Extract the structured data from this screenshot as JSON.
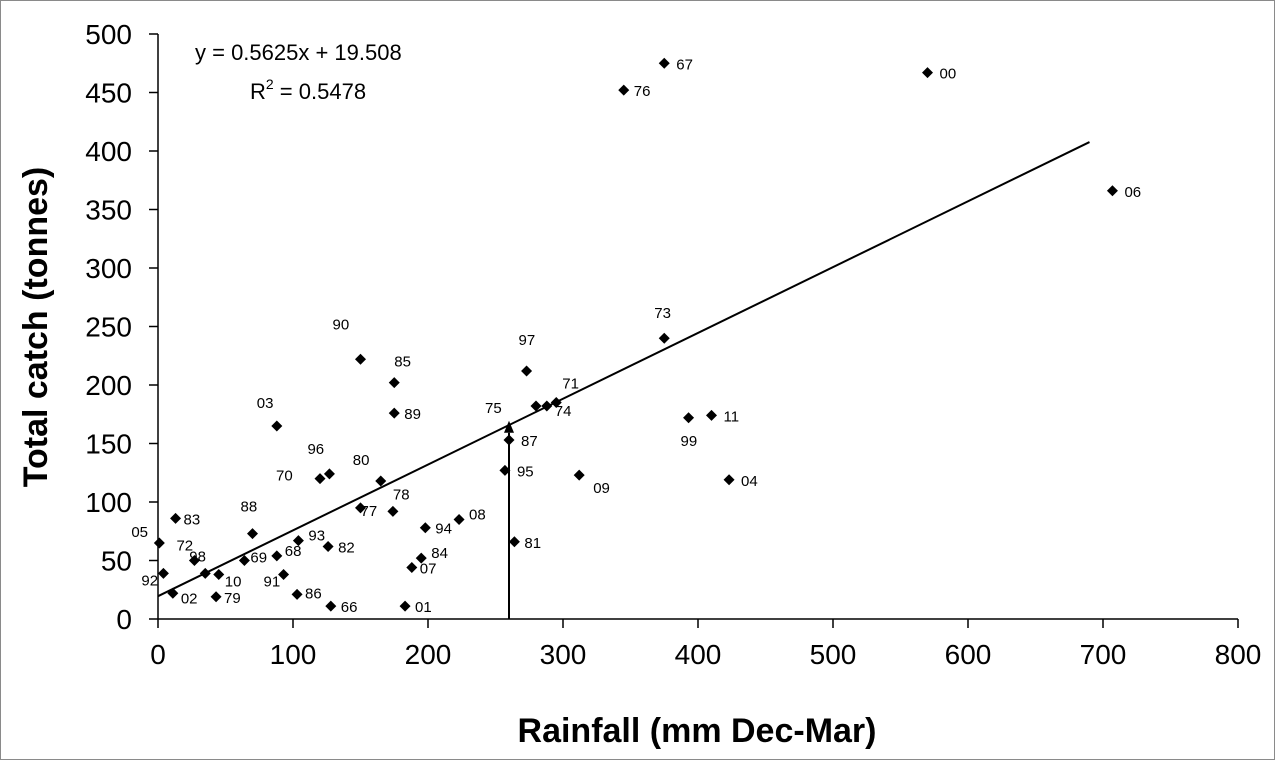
{
  "chart_data": {
    "type": "scatter",
    "xlabel": "Rainfall (mm Dec-Mar)",
    "ylabel": "Total catch (tonnes)",
    "xlim": [
      0,
      800
    ],
    "ylim": [
      0,
      500
    ],
    "xticks": [
      0,
      100,
      200,
      300,
      400,
      500,
      600,
      700,
      800
    ],
    "yticks": [
      0,
      50,
      100,
      150,
      200,
      250,
      300,
      350,
      400,
      450,
      500
    ],
    "grid": false,
    "annotations": {
      "equation": "y = 0.5625x + 19.508",
      "r2_prefix": "R",
      "r2_sup": "2",
      "r2_value": " = 0.5478"
    },
    "trendline": {
      "slope": 0.5625,
      "intercept": 19.508,
      "x_range": [
        0,
        690
      ]
    },
    "marker_line": {
      "x": 260,
      "y_from": 0,
      "y_to": 166,
      "label": "75"
    },
    "points": [
      {
        "label": "67",
        "x": 375,
        "y": 475
      },
      {
        "label": "00",
        "x": 570,
        "y": 467
      },
      {
        "label": "76",
        "x": 345,
        "y": 452
      },
      {
        "label": "06",
        "x": 707,
        "y": 366
      },
      {
        "label": "73",
        "x": 375,
        "y": 240
      },
      {
        "label": "90",
        "x": 150,
        "y": 222
      },
      {
        "label": "97",
        "x": 273,
        "y": 212
      },
      {
        "label": "85",
        "x": 175,
        "y": 202
      },
      {
        "label": "71",
        "x": 295,
        "y": 185
      },
      {
        "label": "74",
        "x": 288,
        "y": 182
      },
      {
        "label": "",
        "x": 280,
        "y": 182
      },
      {
        "label": "89",
        "x": 175,
        "y": 176
      },
      {
        "label": "11",
        "x": 410,
        "y": 174
      },
      {
        "label": "99",
        "x": 393,
        "y": 172
      },
      {
        "label": "03",
        "x": 88,
        "y": 165
      },
      {
        "label": "87",
        "x": 260,
        "y": 153
      },
      {
        "label": "95",
        "x": 257,
        "y": 127
      },
      {
        "label": "96",
        "x": 127,
        "y": 124
      },
      {
        "label": "09",
        "x": 312,
        "y": 123
      },
      {
        "label": "70",
        "x": 120,
        "y": 120
      },
      {
        "label": "04",
        "x": 423,
        "y": 119
      },
      {
        "label": "80",
        "x": 165,
        "y": 118
      },
      {
        "label": "77",
        "x": 150,
        "y": 95
      },
      {
        "label": "78",
        "x": 174,
        "y": 92
      },
      {
        "label": "83",
        "x": 13,
        "y": 86
      },
      {
        "label": "08",
        "x": 223,
        "y": 85
      },
      {
        "label": "94",
        "x": 198,
        "y": 78
      },
      {
        "label": "88",
        "x": 70,
        "y": 73
      },
      {
        "label": "93",
        "x": 104,
        "y": 67
      },
      {
        "label": "81",
        "x": 264,
        "y": 66
      },
      {
        "label": "05",
        "x": 1,
        "y": 65
      },
      {
        "label": "82",
        "x": 126,
        "y": 62
      },
      {
        "label": "68",
        "x": 88,
        "y": 54
      },
      {
        "label": "84",
        "x": 195,
        "y": 52
      },
      {
        "label": "72",
        "x": 27,
        "y": 50
      },
      {
        "label": "69",
        "x": 64,
        "y": 50
      },
      {
        "label": "07",
        "x": 188,
        "y": 44
      },
      {
        "label": "92",
        "x": 4,
        "y": 39
      },
      {
        "label": "98",
        "x": 35,
        "y": 39
      },
      {
        "label": "10",
        "x": 45,
        "y": 38
      },
      {
        "label": "91",
        "x": 93,
        "y": 38
      },
      {
        "label": "02",
        "x": 11,
        "y": 22
      },
      {
        "label": "86",
        "x": 103,
        "y": 21
      },
      {
        "label": "79",
        "x": 43,
        "y": 19
      },
      {
        "label": "66",
        "x": 128,
        "y": 11
      },
      {
        "label": "01",
        "x": 183,
        "y": 11
      }
    ]
  }
}
